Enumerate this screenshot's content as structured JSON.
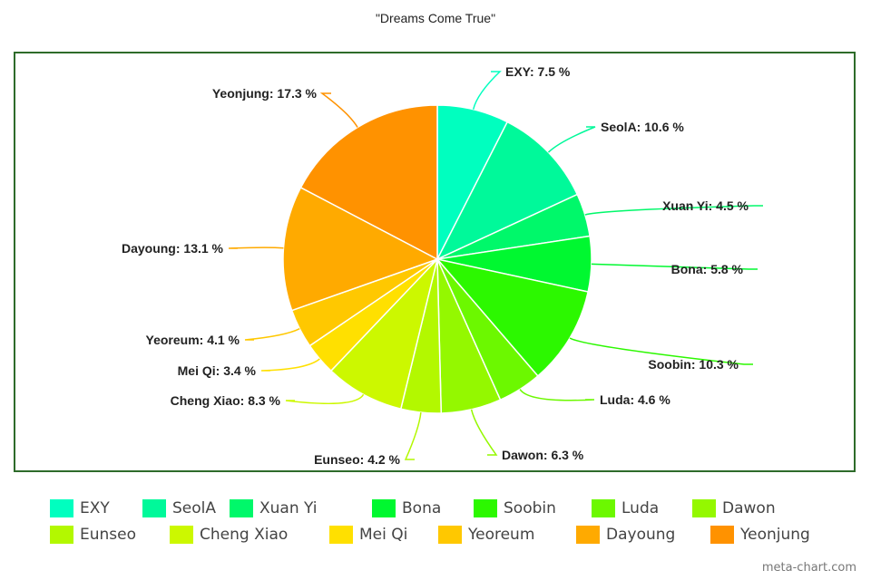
{
  "chart_data": {
    "type": "pie",
    "title": "\"Dreams Come True\"",
    "slices": [
      {
        "name": "EXY",
        "value": 7.5,
        "label": "EXY: 7.5 %",
        "color": "#00ffbf"
      },
      {
        "name": "SeolA",
        "value": 10.6,
        "label": "SeolA: 10.6 %",
        "color": "#00f99a"
      },
      {
        "name": "Xuan Yi",
        "value": 4.5,
        "label": "Xuan Yi: 4.5 %",
        "color": "#00f86a"
      },
      {
        "name": "Bona",
        "value": 5.8,
        "label": "Bona: 5.8 %",
        "color": "#00f830"
      },
      {
        "name": "Soobin",
        "value": 10.3,
        "label": "Soobin: 10.3 %",
        "color": "#2cf800"
      },
      {
        "name": "Luda",
        "value": 4.6,
        "label": "Luda: 4.6 %",
        "color": "#6cf800"
      },
      {
        "name": "Dawon",
        "value": 6.3,
        "label": "Dawon: 6.3 %",
        "color": "#94f800"
      },
      {
        "name": "Eunseo",
        "value": 4.2,
        "label": "Eunseo: 4.2 %",
        "color": "#b3f800"
      },
      {
        "name": "Cheng Xiao",
        "value": 8.3,
        "label": "Cheng Xiao: 8.3 %",
        "color": "#ccf800"
      },
      {
        "name": "Mei Qi",
        "value": 3.4,
        "label": "Mei Qi: 3.4 %",
        "color": "#ffe000"
      },
      {
        "name": "Yeoreum",
        "value": 4.1,
        "label": "Yeoreum: 4.1 %",
        "color": "#ffc800"
      },
      {
        "name": "Dayoung",
        "value": 13.1,
        "label": "Dayoung: 13.1 %",
        "color": "#ffaa00"
      },
      {
        "name": "Yeonjung",
        "value": 17.3,
        "label": "Yeonjung: 17.3 %",
        "color": "#ff9200"
      }
    ],
    "legend_position": "bottom"
  },
  "watermark": "meta-chart.com"
}
